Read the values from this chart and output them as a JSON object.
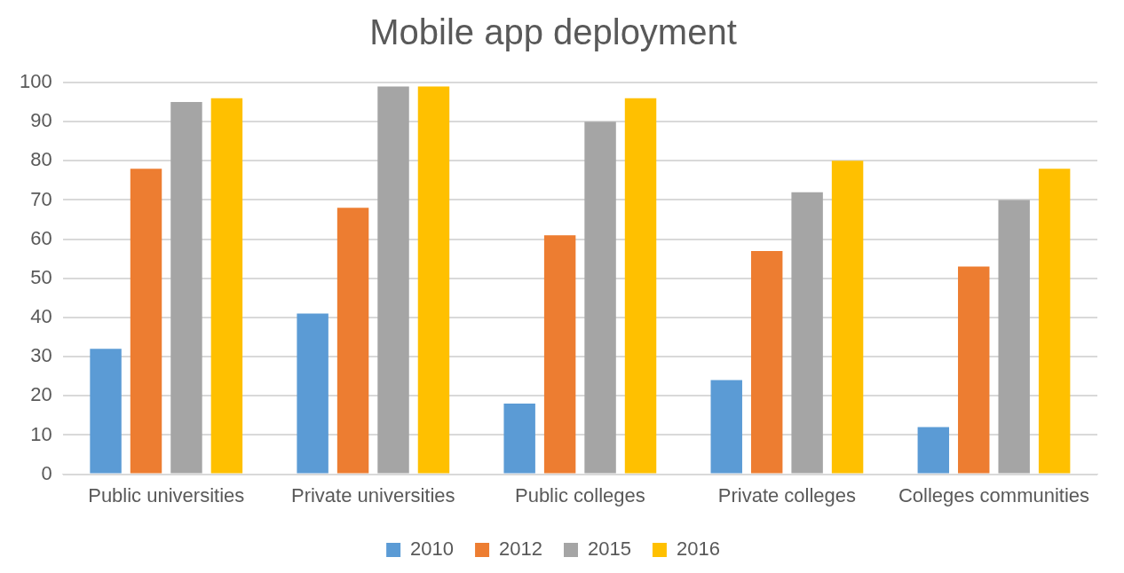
{
  "chart_data": {
    "type": "bar",
    "title": "Mobile app deployment",
    "categories": [
      "Public universities",
      "Private universities",
      "Public colleges",
      "Private colleges",
      "Colleges communities"
    ],
    "series": [
      {
        "name": "2010",
        "color": "#5b9bd5",
        "values": [
          32,
          41,
          18,
          24,
          12
        ]
      },
      {
        "name": "2012",
        "color": "#ed7d31",
        "values": [
          78,
          68,
          61,
          57,
          53
        ]
      },
      {
        "name": "2015",
        "color": "#a5a5a5",
        "values": [
          95,
          99,
          90,
          72,
          70
        ]
      },
      {
        "name": "2016",
        "color": "#ffc000",
        "values": [
          96,
          99,
          96,
          80,
          78
        ]
      }
    ],
    "ylim": [
      0,
      100
    ],
    "yticks": [
      0,
      10,
      20,
      30,
      40,
      50,
      60,
      70,
      80,
      90,
      100
    ],
    "grid": "y",
    "legend": "bottom"
  }
}
